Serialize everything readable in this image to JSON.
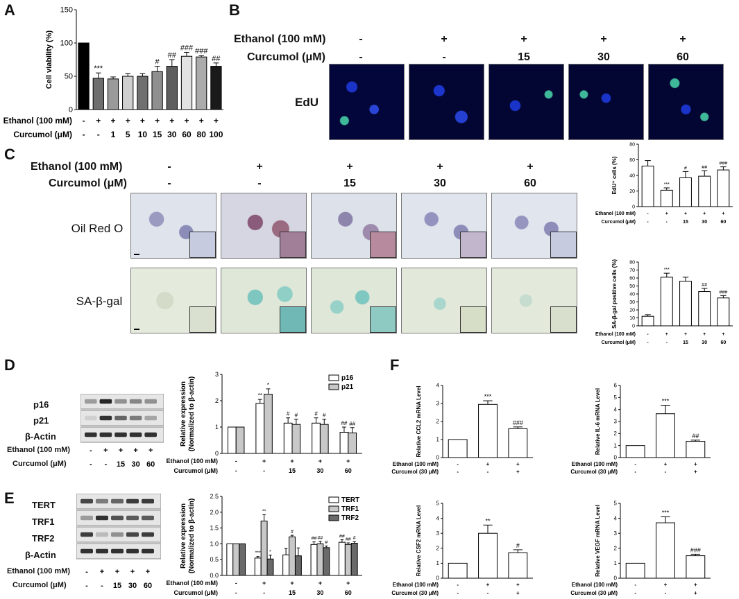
{
  "panels": {
    "A": "A",
    "B": "B",
    "C": "C",
    "D": "D",
    "E": "E",
    "F": "F"
  },
  "panelA": {
    "ylabel": "Cell viability (%)",
    "ethanol_label": "Ethanol (100 mM)",
    "curcumol_label": "Curcumol (μM)",
    "ethanol": [
      "-",
      "+",
      "+",
      "+",
      "+",
      "+",
      "+",
      "+",
      "+",
      "+"
    ],
    "curcumol": [
      "-",
      "-",
      "1",
      "5",
      "10",
      "15",
      "30",
      "60",
      "80",
      "100"
    ]
  },
  "panelB": {
    "ethanol_label": "Ethanol (100 mM)",
    "curcumol_label": "Curcumol (μM)",
    "ethanol": [
      "-",
      "+",
      "+",
      "+",
      "+"
    ],
    "curcumol": [
      "-",
      "-",
      "15",
      "30",
      "60"
    ],
    "row_label": "EdU"
  },
  "panelC": {
    "ethanol_label": "Ethanol (100 mM)",
    "curcumol_label": "Curcumol (μM)",
    "ethanol": [
      "-",
      "+",
      "+",
      "+",
      "+"
    ],
    "curcumol": [
      "-",
      "-",
      "15",
      "30",
      "60"
    ],
    "row1_label": "Oil Red O",
    "row2_label": "SA-β-gal"
  },
  "panelD": {
    "blot_labels": [
      "p16",
      "p21",
      "β-Actin"
    ],
    "ethanol_label": "Ethanol (100 mM)",
    "curcumol_label": "Curcumol (μM)",
    "ethanol": [
      "-",
      "+",
      "+",
      "+",
      "+"
    ],
    "curcumol": [
      "-",
      "-",
      "15",
      "30",
      "60"
    ]
  },
  "panelE": {
    "blot_labels": [
      "TERT",
      "TRF1",
      "TRF2",
      "β-Actin"
    ],
    "ethanol_label": "Ethanol (100 mM)",
    "curcumol_label": "Curcumol (μM)",
    "ethanol": [
      "-",
      "+",
      "+",
      "+",
      "+"
    ],
    "curcumol": [
      "-",
      "-",
      "15",
      "30",
      "60"
    ]
  },
  "chart_data": [
    {
      "id": "A",
      "type": "bar",
      "categories": [
        "1",
        "2",
        "3",
        "4",
        "5",
        "6",
        "7",
        "8",
        "9",
        "10"
      ],
      "values": [
        100,
        47,
        46,
        50,
        50,
        57,
        65,
        80,
        79,
        65
      ],
      "errors": [
        0,
        8,
        3,
        4,
        4,
        8,
        10,
        6,
        2,
        5
      ],
      "colors": [
        "#000000",
        "#6e6e6e",
        "#9a9a9a",
        "#cfcfcf",
        "#707070",
        "#8f8f8f",
        "#5e5e5e",
        "#e2e2e2",
        "#ababab",
        "#1a1a1a"
      ],
      "sig": [
        "",
        "***",
        "",
        "",
        "",
        "#",
        "##",
        "###",
        "###",
        "##"
      ],
      "ylabel": "Cell viability (%)",
      "ylim": [
        0,
        150
      ],
      "yticks": [
        0,
        50,
        100,
        150
      ]
    },
    {
      "id": "EdU",
      "type": "bar",
      "categories": [
        "1",
        "2",
        "3",
        "4",
        "5"
      ],
      "values": [
        52,
        21,
        37,
        39,
        47
      ],
      "errors": [
        7,
        3,
        8,
        7,
        4
      ],
      "sig": [
        "",
        "***",
        "#",
        "##",
        "###"
      ],
      "ylabel": "EdU⁺ cells (%)",
      "ylim": [
        0,
        80
      ],
      "yticks": [
        0,
        20,
        40,
        60,
        80
      ],
      "ethanol_label": "Ethanol (100 mM)",
      "curcumol_label": "Curcumol (μM)",
      "ethanol": [
        "-",
        "+",
        "+",
        "+",
        "+"
      ],
      "curcumol": [
        "-",
        "-",
        "15",
        "30",
        "60"
      ]
    },
    {
      "id": "SA",
      "type": "bar",
      "categories": [
        "1",
        "2",
        "3",
        "4",
        "5"
      ],
      "values": [
        12,
        61,
        56,
        43,
        35
      ],
      "errors": [
        2,
        5,
        5,
        4,
        3
      ],
      "sig": [
        "",
        "***",
        "",
        "##",
        "###"
      ],
      "ylabel": "SA-β-gal positive cells (%)",
      "ylim": [
        0,
        80
      ],
      "yticks": [
        0,
        10,
        20,
        30,
        40,
        50,
        60,
        70,
        80
      ],
      "ethanol_label": "Ethanol (100 mM)",
      "curcumol_label": "Curcumol (μM)",
      "ethanol": [
        "-",
        "+",
        "+",
        "+",
        "+"
      ],
      "curcumol": [
        "-",
        "-",
        "15",
        "30",
        "60"
      ]
    },
    {
      "id": "D",
      "type": "bar",
      "categories": [
        "1",
        "2",
        "3",
        "4",
        "5"
      ],
      "series": [
        {
          "name": "p16",
          "values": [
            1.0,
            1.9,
            1.15,
            1.15,
            0.8
          ],
          "errors": [
            0,
            0.15,
            0.2,
            0.2,
            0.2
          ],
          "sig": [
            "",
            "**",
            "#",
            "#",
            "##"
          ],
          "color": "#ffffff"
        },
        {
          "name": "p21",
          "values": [
            1.0,
            2.25,
            1.1,
            1.1,
            0.78
          ],
          "errors": [
            0,
            0.2,
            0.2,
            0.2,
            0.2
          ],
          "sig": [
            "",
            "*",
            "#",
            "#",
            "##"
          ],
          "color": "#c8c8c8"
        }
      ],
      "ylabel": "Relative expression",
      "ylabel2": "(Normalized to β-actin)",
      "ylim": [
        0,
        3
      ],
      "yticks": [
        0,
        1,
        2,
        3
      ],
      "ethanol_label": "Ethanol (100 mM)",
      "curcumol_label": "Curcumol (μM)",
      "ethanol": [
        "-",
        "+",
        "+",
        "+",
        "+"
      ],
      "curcumol": [
        "-",
        "-",
        "15",
        "30",
        "60"
      ]
    },
    {
      "id": "E",
      "type": "bar",
      "categories": [
        "1",
        "2",
        "3",
        "4",
        "5"
      ],
      "series": [
        {
          "name": "TERT",
          "values": [
            1.0,
            0.55,
            0.65,
            0.98,
            1.05
          ],
          "errors": [
            0,
            0.05,
            0.2,
            0.08,
            0.08
          ],
          "sig": [
            "",
            "***",
            "",
            "##",
            "##"
          ],
          "color": "#ffffff"
        },
        {
          "name": "TRF1",
          "values": [
            1.0,
            1.72,
            1.22,
            1.0,
            0.98
          ],
          "errors": [
            0,
            0.2,
            0.05,
            0.08,
            0.05
          ],
          "sig": [
            "",
            "**",
            "#",
            "##",
            "##"
          ],
          "color": "#c8c8c8"
        },
        {
          "name": "TRF2",
          "values": [
            1.0,
            0.52,
            0.62,
            0.88,
            1.02
          ],
          "errors": [
            0,
            0.12,
            0.25,
            0.05,
            0.05
          ],
          "sig": [
            "",
            "*",
            "",
            "#",
            "#"
          ],
          "color": "#6a6a6a"
        }
      ],
      "ylabel": "Relative expression",
      "ylabel2": "(Normalized to β-actin)",
      "ylim": [
        0,
        2.5
      ],
      "yticks": [
        0.0,
        0.5,
        1.0,
        1.5,
        2.0,
        2.5
      ],
      "ethanol_label": "Ethanol (100 mM)",
      "curcumol_label": "Curcumol (μM)",
      "ethanol": [
        "-",
        "+",
        "+",
        "+",
        "+"
      ],
      "curcumol": [
        "-",
        "-",
        "15",
        "30",
        "60"
      ]
    },
    {
      "id": "CCL2",
      "type": "bar",
      "categories": [
        "1",
        "2",
        "3"
      ],
      "values": [
        1.0,
        2.95,
        1.6
      ],
      "errors": [
        0,
        0.2,
        0.1
      ],
      "sig": [
        "",
        "***",
        "###"
      ],
      "ylabel": "Relative CCL2 mRNA Level",
      "ylim": [
        0,
        4
      ],
      "yticks": [
        0,
        1,
        2,
        3,
        4
      ],
      "ethanol_label": "Ethanol (100 mM)",
      "curcumol_label": "Curcumol (30 μM)",
      "ethanol": [
        "-",
        "+",
        "+"
      ],
      "curcumol": [
        "-",
        "-",
        "+"
      ]
    },
    {
      "id": "IL6",
      "type": "bar",
      "categories": [
        "1",
        "2",
        "3"
      ],
      "values": [
        1.0,
        3.65,
        1.35
      ],
      "errors": [
        0,
        0.7,
        0.1
      ],
      "sig": [
        "",
        "***",
        "##"
      ],
      "ylabel": "Relative IL-6 mRNA Level",
      "ylim": [
        0,
        6
      ],
      "yticks": [
        0,
        1,
        2,
        3,
        4,
        5,
        6
      ],
      "ethanol_label": "Ethanol (100 mM)",
      "curcumol_label": "Curcumol (30 μM)",
      "ethanol": [
        "-",
        "+",
        "+"
      ],
      "curcumol": [
        "-",
        "-",
        "+"
      ]
    },
    {
      "id": "CSF2",
      "type": "bar",
      "categories": [
        "1",
        "2",
        "3"
      ],
      "values": [
        1.0,
        3.0,
        1.7
      ],
      "errors": [
        0,
        0.55,
        0.2
      ],
      "sig": [
        "",
        "**",
        "#"
      ],
      "ylabel": "Relative CSF2 mRNA Level",
      "ylim": [
        0,
        5
      ],
      "yticks": [
        0,
        1,
        2,
        3,
        4,
        5
      ],
      "ethanol_label": "Ethanol (100 mM)",
      "curcumol_label": "Curcumol (30 μM)",
      "ethanol": [
        "-",
        "+",
        "+"
      ],
      "curcumol": [
        "-",
        "-",
        "+"
      ]
    },
    {
      "id": "VEGF",
      "type": "bar",
      "categories": [
        "1",
        "2",
        "3"
      ],
      "values": [
        1.0,
        3.7,
        1.5
      ],
      "errors": [
        0,
        0.4,
        0.1
      ],
      "sig": [
        "",
        "***",
        "###"
      ],
      "ylabel": "Relative VEGF mRNA Level",
      "ylim": [
        0,
        5
      ],
      "yticks": [
        0,
        1,
        2,
        3,
        4,
        5
      ],
      "ethanol_label": "Ethanol (100 mM)",
      "curcumol_label": "Curcumol (30 μM)",
      "ethanol": [
        "-",
        "+",
        "+"
      ],
      "curcumol": [
        "-",
        "-",
        "+"
      ]
    }
  ]
}
